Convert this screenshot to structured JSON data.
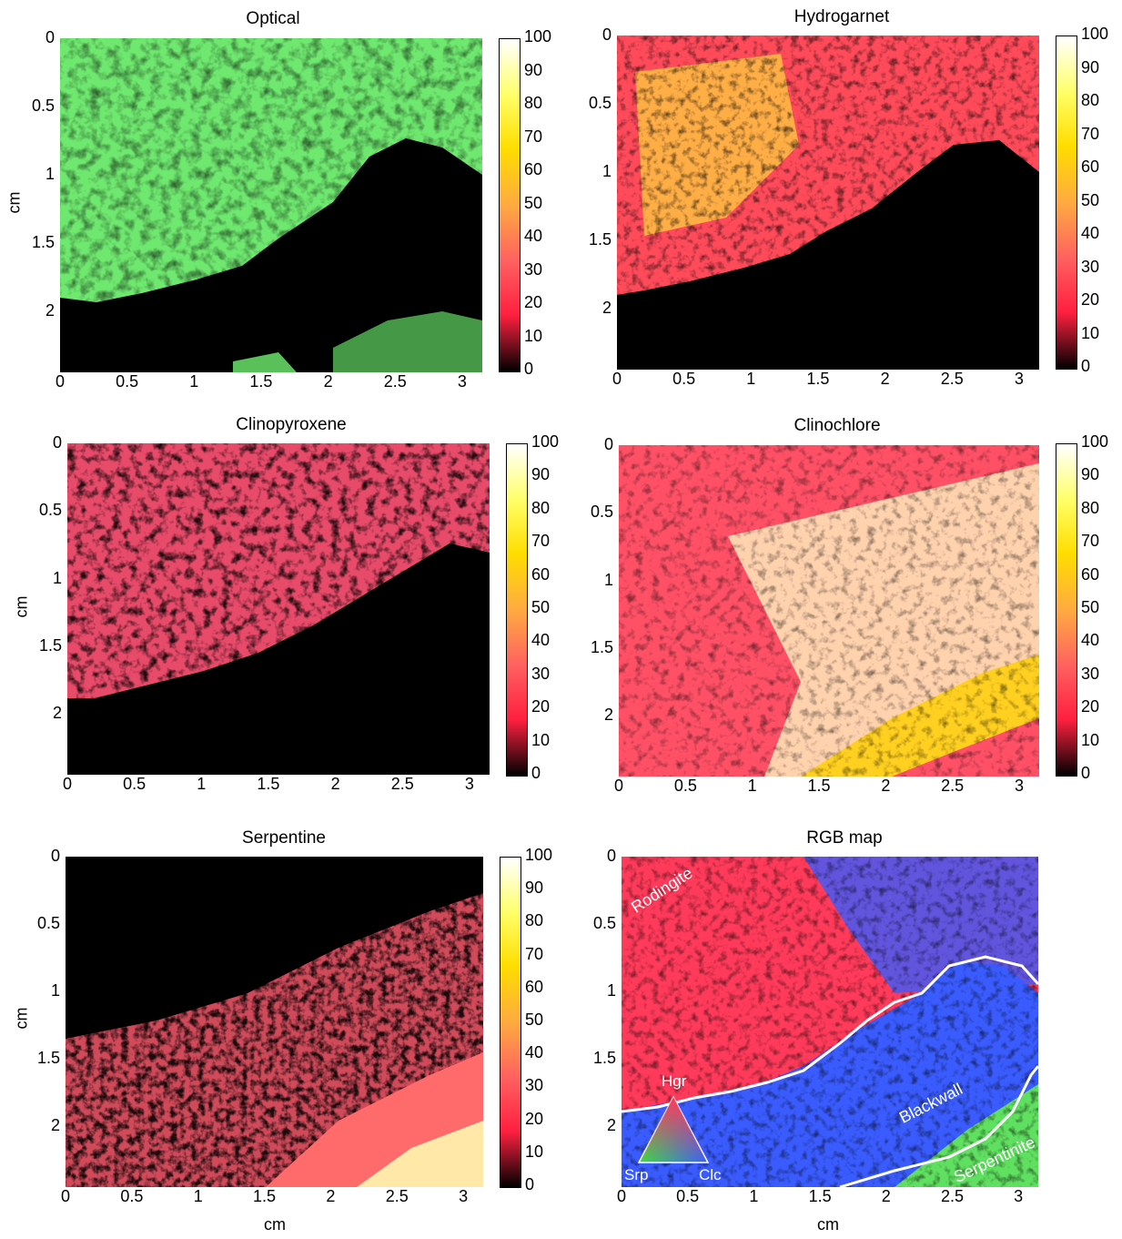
{
  "panels": [
    {
      "id": "optical",
      "title": "Optical",
      "colorbar": true
    },
    {
      "id": "hydrogarnet",
      "title": "Hydrogarnet",
      "colorbar": true
    },
    {
      "id": "clinopyroxene",
      "title": "Clinopyroxene",
      "colorbar": true
    },
    {
      "id": "clinochlore",
      "title": "Clinochlore",
      "colorbar": true
    },
    {
      "id": "serpentine",
      "title": "Serpentine",
      "colorbar": true
    },
    {
      "id": "rgb",
      "title": "RGB map",
      "colorbar": false
    }
  ],
  "axes": {
    "y_ticks": [
      "0",
      "0.5",
      "1",
      "1.5",
      "2"
    ],
    "x_ticks": [
      "0",
      "0.5",
      "1",
      "1.5",
      "2",
      "2.5",
      "3"
    ],
    "ylabel": "cm",
    "xlabel": "cm"
  },
  "colorbar": {
    "ticks": [
      "100",
      "90",
      "80",
      "70",
      "60",
      "50",
      "40",
      "30",
      "20",
      "10",
      "0"
    ],
    "colors": [
      "#ffffff",
      "#ffff66",
      "#ffdd00",
      "#ffaa40",
      "#ff6060",
      "#ff2040",
      "#000000"
    ]
  },
  "rgb_map": {
    "zones": [
      "Rodingite",
      "Blackwall",
      "Serpentinite"
    ],
    "triangle": {
      "top": "Hgr",
      "left": "Srp",
      "right": "Clc"
    },
    "colors": {
      "hgr": "#ff3a5a",
      "clc": "#3a5cff",
      "srp": "#40dd40"
    }
  }
}
